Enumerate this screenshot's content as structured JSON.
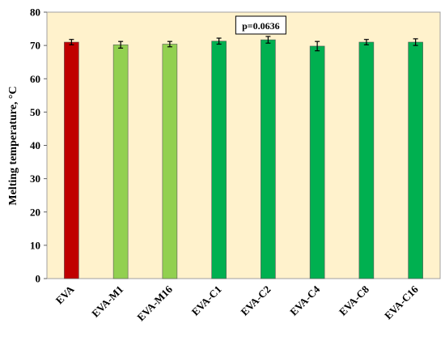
{
  "chart_data": {
    "type": "bar",
    "ylabel": "Melting temperature, °C",
    "ylim": [
      0,
      80
    ],
    "yticks": [
      "0",
      "10",
      "20",
      "30",
      "40",
      "50",
      "60",
      "70",
      "80"
    ],
    "categories": [
      "EVA",
      "EVA-M1",
      "EVA-M16",
      "EVA-C1",
      "EVA-C2",
      "EVA-C4",
      "EVA-C8",
      "EVA-C16"
    ],
    "values": [
      71.0,
      70.2,
      70.4,
      71.3,
      71.7,
      69.8,
      71.0,
      71.0
    ],
    "errors": [
      0.8,
      1.0,
      0.8,
      0.9,
      1.0,
      1.4,
      0.8,
      1.0
    ],
    "bar_colors": [
      "#c00000",
      "#92d050",
      "#92d050",
      "#00b050",
      "#00b050",
      "#00b050",
      "#00b050",
      "#00b050"
    ],
    "plot_background": "#fff2cc",
    "grid": false,
    "annotation": {
      "text": "p=0.0636",
      "category": "EVA-C2"
    }
  }
}
